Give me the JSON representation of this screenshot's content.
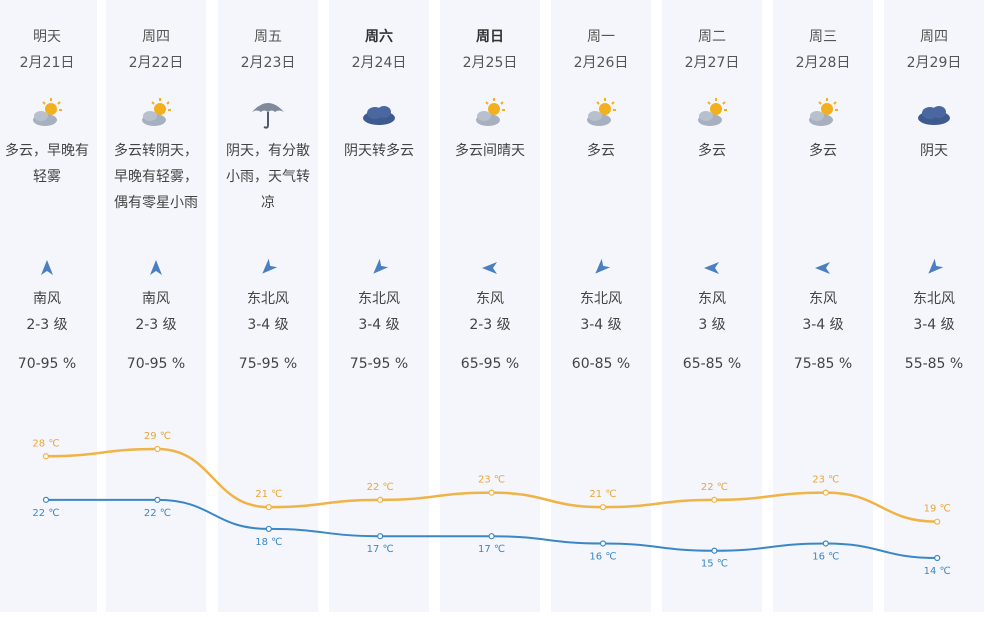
{
  "forecast": {
    "days": [
      {
        "day": "明天",
        "date": "2月21日",
        "weather": "多云，早晚有轻雾",
        "icon": "partly-cloudy-icon",
        "wind_dir": "南风",
        "wind_level": "2-3 级",
        "humidity": "70-95 %",
        "high": "28 ℃",
        "low": "22 ℃"
      },
      {
        "day": "周四",
        "date": "2月22日",
        "weather": "多云转阴天，早晚有轻雾，偶有零星小雨",
        "icon": "partly-cloudy-icon",
        "wind_dir": "南风",
        "wind_level": "2-3 级",
        "humidity": "70-95 %",
        "high": "29 ℃",
        "low": "22 ℃"
      },
      {
        "day": "周五",
        "date": "2月23日",
        "weather": "阴天，有分散小雨，天气转凉",
        "icon": "umbrella-icon",
        "wind_dir": "东北风",
        "wind_level": "3-4 级",
        "humidity": "75-95 %",
        "high": "21 ℃",
        "low": "18 ℃"
      },
      {
        "day": "周六",
        "date": "2月24日",
        "weather": "阴天转多云",
        "icon": "cloud-icon",
        "wind_dir": "东北风",
        "wind_level": "3-4 级",
        "humidity": "75-95 %",
        "high": "22 ℃",
        "low": "17 ℃"
      },
      {
        "day": "周日",
        "date": "2月25日",
        "weather": "多云间晴天",
        "icon": "partly-cloudy-icon",
        "wind_dir": "东风",
        "wind_level": "2-3 级",
        "humidity": "65-95 %",
        "high": "23 ℃",
        "low": "17 ℃"
      },
      {
        "day": "周一",
        "date": "2月26日",
        "weather": "多云",
        "icon": "partly-cloudy-icon",
        "wind_dir": "东北风",
        "wind_level": "3-4 级",
        "humidity": "60-85 %",
        "high": "21 ℃",
        "low": "16 ℃"
      },
      {
        "day": "周二",
        "date": "2月27日",
        "weather": "多云",
        "icon": "partly-cloudy-icon",
        "wind_dir": "东风",
        "wind_level": "3 级",
        "humidity": "65-85 %",
        "high": "22 ℃",
        "low": "15 ℃"
      },
      {
        "day": "周三",
        "date": "2月28日",
        "weather": "多云",
        "icon": "partly-cloudy-icon",
        "wind_dir": "东风",
        "wind_level": "3-4 级",
        "humidity": "75-85 %",
        "high": "23 ℃",
        "low": "16 ℃"
      },
      {
        "day": "周四",
        "date": "2月29日",
        "weather": "阴天",
        "icon": "cloud-icon",
        "wind_dir": "东北风",
        "wind_level": "3-4 级",
        "humidity": "55-85 %",
        "high": "19 ℃",
        "low": "14 ℃"
      }
    ]
  },
  "chart_data": {
    "type": "line",
    "x": [
      "2月21日",
      "2月22日",
      "2月23日",
      "2月24日",
      "2月25日",
      "2月26日",
      "2月27日",
      "2月28日",
      "2月29日"
    ],
    "series": [
      {
        "values": [
          28,
          29,
          21,
          22,
          23,
          21,
          22,
          23,
          19
        ],
        "color": "#f0b345"
      },
      {
        "values": [
          22,
          22,
          18,
          17,
          17,
          16,
          15,
          16,
          14
        ],
        "color": "#3a87c8"
      }
    ],
    "unit": "℃"
  },
  "colors": {
    "column_bg": "#f4f6fb",
    "high_line": "#f0b345",
    "low_line": "#3a87c8"
  }
}
